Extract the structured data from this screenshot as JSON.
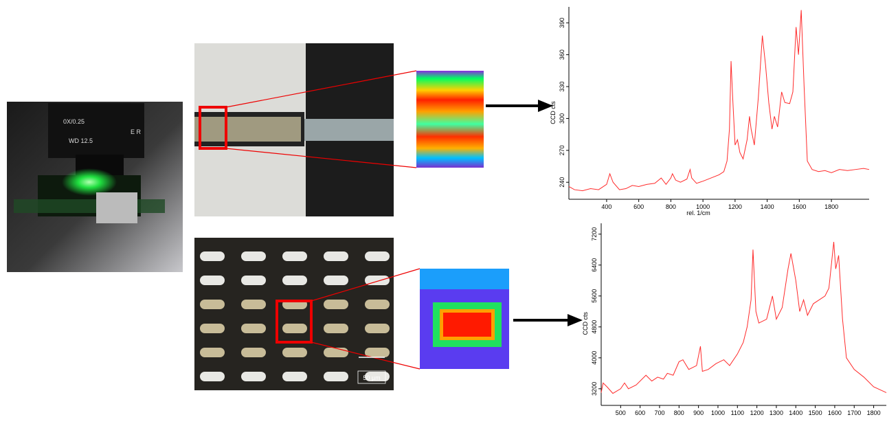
{
  "photos": {
    "objective_labels": [
      "0X/0.25",
      "WD 12.5",
      "E R"
    ],
    "scale_bar": "50 µm"
  },
  "chart_data": [
    {
      "type": "line",
      "y_label": "CCD cts",
      "x_label": "rel. 1/cm",
      "xlim": [
        165,
        2035
      ],
      "xticks": [
        400,
        600,
        800,
        1000,
        1200,
        1400,
        1600,
        1800
      ],
      "ylim": [
        224,
        405
      ],
      "yticks": [
        240,
        270,
        300,
        330,
        360,
        390
      ],
      "x": [
        165,
        200,
        250,
        300,
        350,
        400,
        420,
        440,
        480,
        520,
        560,
        600,
        650,
        700,
        740,
        770,
        800,
        810,
        830,
        860,
        900,
        920,
        930,
        960,
        1000,
        1050,
        1100,
        1130,
        1150,
        1165,
        1175,
        1185,
        1200,
        1215,
        1230,
        1250,
        1275,
        1290,
        1300,
        1320,
        1345,
        1370,
        1390,
        1410,
        1430,
        1445,
        1465,
        1490,
        1510,
        1540,
        1560,
        1580,
        1595,
        1612,
        1630,
        1650,
        1680,
        1720,
        1760,
        1800,
        1850,
        1900,
        1950,
        2000,
        2035
      ],
      "series": [
        {
          "color": "#ff2a2a",
          "values": [
            236,
            233,
            232,
            234,
            233,
            238,
            248,
            240,
            233,
            234,
            237,
            236,
            238,
            239,
            244,
            238,
            244,
            248,
            242,
            240,
            243,
            252,
            244,
            239,
            241,
            244,
            247,
            250,
            260,
            290,
            354,
            320,
            275,
            280,
            268,
            262,
            280,
            302,
            290,
            275,
            320,
            378,
            350,
            315,
            290,
            302,
            292,
            325,
            315,
            314,
            325,
            386,
            360,
            402,
            330,
            260,
            252,
            250,
            251,
            249,
            252,
            251,
            252,
            253,
            252
          ]
        }
      ]
    },
    {
      "type": "line",
      "y_label": "CCD cts",
      "xlim": [
        400,
        1865
      ],
      "xticks": [
        500,
        600,
        700,
        800,
        900,
        1000,
        1100,
        1200,
        1300,
        1400,
        1500,
        1600,
        1700,
        1800
      ],
      "ylim": [
        2770,
        7480
      ],
      "yticks": [
        3200,
        4000,
        4800,
        5600,
        6400,
        7200
      ],
      "x": [
        400,
        410,
        430,
        460,
        500,
        520,
        540,
        580,
        610,
        630,
        660,
        690,
        720,
        740,
        770,
        800,
        820,
        850,
        890,
        910,
        920,
        950,
        990,
        1030,
        1060,
        1100,
        1130,
        1150,
        1170,
        1180,
        1195,
        1210,
        1250,
        1280,
        1300,
        1330,
        1360,
        1375,
        1400,
        1420,
        1440,
        1460,
        1490,
        1520,
        1550,
        1570,
        1595,
        1605,
        1620,
        1640,
        1660,
        1700,
        1750,
        1800,
        1865
      ],
      "series": [
        {
          "color": "#ff2a2a",
          "values": [
            3100,
            3350,
            3250,
            3080,
            3200,
            3350,
            3200,
            3300,
            3450,
            3550,
            3400,
            3500,
            3450,
            3600,
            3550,
            3900,
            3950,
            3700,
            3800,
            4300,
            3650,
            3700,
            3850,
            3950,
            3800,
            4100,
            4400,
            4800,
            5500,
            6800,
            5200,
            4900,
            5000,
            5600,
            5000,
            5300,
            6300,
            6700,
            6000,
            5200,
            5500,
            5100,
            5400,
            5500,
            5600,
            5800,
            7000,
            6300,
            6650,
            5000,
            4000,
            3700,
            3500,
            3250,
            3100
          ]
        }
      ]
    }
  ]
}
